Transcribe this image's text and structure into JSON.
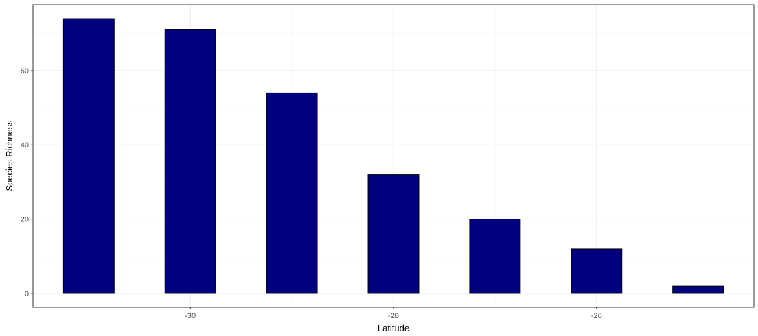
{
  "chart_data": {
    "type": "bar",
    "title": "",
    "xlabel": "Latitude",
    "ylabel": "Species Richness",
    "x": [
      -31,
      -30,
      -29,
      -28,
      -27,
      -26,
      -25
    ],
    "values": [
      74,
      71,
      54,
      32,
      20,
      12,
      2
    ],
    "bar_width": 0.5,
    "xlim": [
      -31.55,
      -24.45
    ],
    "ylim": [
      -3.7,
      77.7
    ],
    "x_ticks": [
      -30,
      -28,
      -26
    ],
    "x_tick_labels": [
      "-30",
      "-28",
      "-26"
    ],
    "y_ticks": [
      0,
      20,
      40,
      60
    ],
    "y_tick_labels": [
      "0",
      "20",
      "40",
      "60"
    ],
    "grid": true,
    "legend": "none",
    "colors": {
      "bar_fill": "#00007f",
      "bar_stroke": "#000000",
      "grid_major": "#ebebeb",
      "grid_minor": "#f5f5f5",
      "panel_border": "#333333"
    }
  }
}
